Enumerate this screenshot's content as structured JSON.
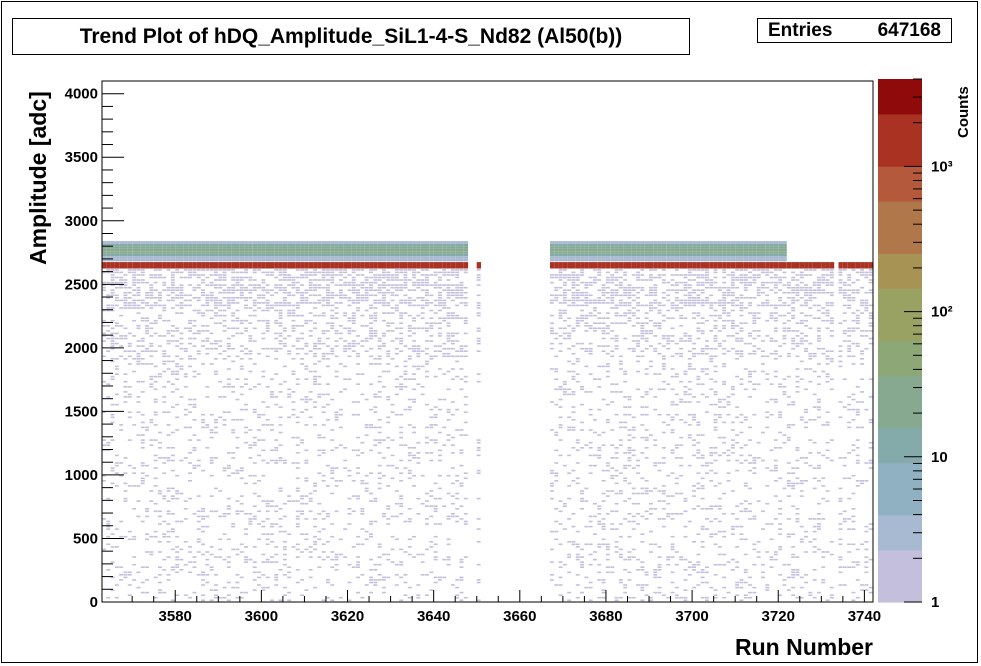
{
  "chart_data": {
    "type": "heatmap",
    "title": "Trend Plot of hDQ_Amplitude_SiL1-4-S_Nd82 (Al50(b))",
    "stats": {
      "label": "Entries",
      "value": "647168"
    },
    "xlabel": "Run Number",
    "ylabel": "Amplitude [adc]",
    "zlabel": "Counts",
    "xlim": [
      3563,
      3742
    ],
    "ylim": [
      0,
      4100
    ],
    "zlim": [
      1,
      4000
    ],
    "zscale": "log",
    "x_ticks": [
      3580,
      3600,
      3620,
      3640,
      3660,
      3680,
      3700,
      3720,
      3740
    ],
    "y_ticks": [
      0,
      500,
      1000,
      1500,
      2000,
      2500,
      3000,
      3500,
      4000
    ],
    "z_ticks": [
      {
        "value": 1,
        "label": "1"
      },
      {
        "value": 10,
        "label": "10"
      },
      {
        "value": 100,
        "label": "10²"
      },
      {
        "value": 1000,
        "label": "10³"
      }
    ],
    "run_ranges_with_data": [
      [
        3563,
        3648
      ],
      [
        3650,
        3651
      ],
      [
        3667,
        3722
      ],
      [
        3722,
        3733
      ],
      [
        3734,
        3742
      ]
    ],
    "peak_amplitude": 2650,
    "upper_band_amplitude": [
      2680,
      2840
    ],
    "upper_band_end_run": 3722,
    "palette": [
      "#c3bfdc",
      "#a8b9d2",
      "#8fb1c1",
      "#84aba9",
      "#86a98f",
      "#8da777",
      "#99a163",
      "#a79354",
      "#b0784a",
      "#b4593b",
      "#aa3222",
      "#8f0b0b"
    ]
  }
}
